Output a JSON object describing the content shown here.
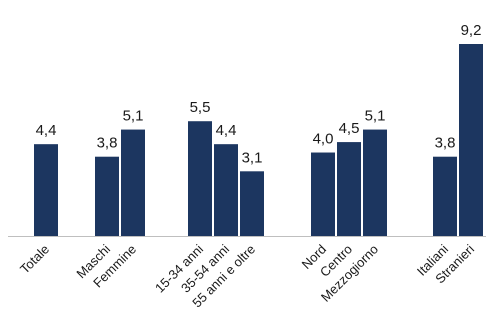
{
  "chart_data": {
    "type": "bar",
    "title": "",
    "xlabel": "",
    "ylabel": "",
    "ylim": [
      0,
      9.2
    ],
    "grid": false,
    "legend": "none",
    "bar_color": "#1c3660",
    "axis_color": "#bfbfbf",
    "text_color": "#1a1a1a",
    "groups": [
      {
        "categories": [
          "Totale"
        ],
        "values": [
          4.4
        ],
        "value_labels": [
          "4,4"
        ]
      },
      {
        "categories": [
          "Maschi",
          "Femmine"
        ],
        "values": [
          3.8,
          5.1
        ],
        "value_labels": [
          "3,8",
          "5,1"
        ]
      },
      {
        "categories": [
          "15-34 anni",
          "35-54 anni",
          "55 anni e oltre"
        ],
        "values": [
          5.5,
          4.4,
          3.1
        ],
        "value_labels": [
          "5,5",
          "4,4",
          "3,1"
        ]
      },
      {
        "categories": [
          "Nord",
          "Centro",
          "Mezzogiorno"
        ],
        "values": [
          4.0,
          4.5,
          5.1
        ],
        "value_labels": [
          "4,0",
          "4,5",
          "5,1"
        ]
      },
      {
        "categories": [
          "Italiani",
          "Stranieri"
        ],
        "values": [
          3.8,
          9.2
        ],
        "value_labels": [
          "3,8",
          "9,2"
        ]
      }
    ]
  }
}
